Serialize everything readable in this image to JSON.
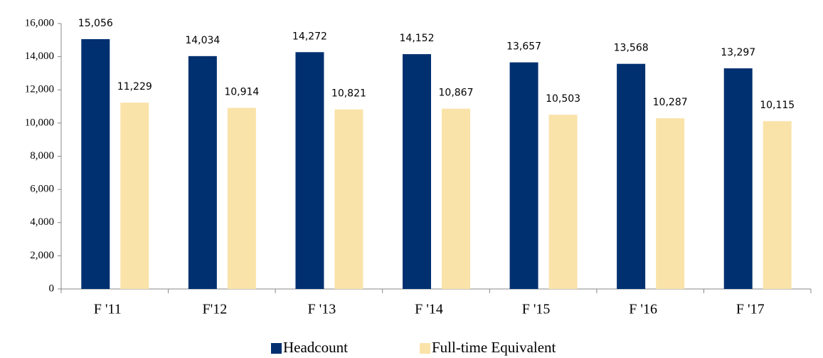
{
  "chart_data": {
    "type": "bar",
    "categories": [
      "F '11",
      "F'12",
      "F '13",
      "F '14",
      "F '15",
      "F '16",
      "F '17"
    ],
    "series": [
      {
        "name": "Headcount",
        "color": "#003070",
        "values": [
          15056,
          14034,
          14272,
          14152,
          13657,
          13568,
          13297
        ],
        "value_labels": [
          "15,056",
          "14,034",
          "14,272",
          "14,152",
          "13,657",
          "13,568",
          "13,297"
        ]
      },
      {
        "name": "Full-time Equivalent",
        "color": "#fae3a9",
        "values": [
          11229,
          10914,
          10821,
          10867,
          10503,
          10287,
          10115
        ],
        "value_labels": [
          "11,229",
          "10,914",
          "10,821",
          "10,867",
          "10,503",
          "10,287",
          "10,115"
        ]
      }
    ],
    "ylim": [
      0,
      16000
    ],
    "yticks": [
      0,
      {
        "value": 2000,
        "label": "2,000"
      },
      {
        "value": 4000,
        "label": "4,000"
      },
      {
        "value": 6000,
        "label": "6,000"
      },
      {
        "value": 8000,
        "label": "8,000"
      },
      {
        "value": 10000,
        "label": "10,000"
      },
      {
        "value": 12000,
        "label": "12,000"
      },
      {
        "value": 14000,
        "label": "14,000"
      },
      {
        "value": 16000,
        "label": "16,000"
      }
    ],
    "grid": false,
    "legend": "bottom"
  }
}
